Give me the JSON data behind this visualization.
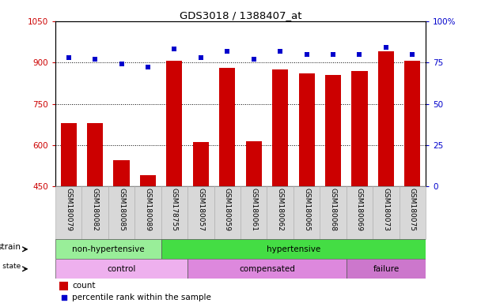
{
  "title": "GDS3018 / 1388407_at",
  "samples": [
    "GSM180079",
    "GSM180082",
    "GSM180085",
    "GSM180089",
    "GSM178755",
    "GSM180057",
    "GSM180059",
    "GSM180061",
    "GSM180062",
    "GSM180065",
    "GSM180068",
    "GSM180069",
    "GSM180073",
    "GSM180075"
  ],
  "counts": [
    680,
    680,
    545,
    490,
    905,
    610,
    880,
    615,
    875,
    860,
    855,
    870,
    940,
    905
  ],
  "percentiles": [
    78,
    77,
    74,
    72,
    83,
    78,
    82,
    77,
    82,
    80,
    80,
    80,
    84,
    80
  ],
  "ylim_left": [
    450,
    1050
  ],
  "ylim_right": [
    0,
    100
  ],
  "yticks_left": [
    450,
    600,
    750,
    900,
    1050
  ],
  "yticks_right": [
    0,
    25,
    50,
    75,
    100
  ],
  "bar_color": "#CC0000",
  "dot_color": "#0000CC",
  "strain_groups": [
    {
      "label": "non-hypertensive",
      "start": 0,
      "end": 4,
      "color": "#99EE99"
    },
    {
      "label": "hypertensive",
      "start": 4,
      "end": 14,
      "color": "#44DD44"
    }
  ],
  "disease_groups": [
    {
      "label": "control",
      "start": 0,
      "end": 5,
      "color": "#EEB0EE"
    },
    {
      "label": "compensated",
      "start": 5,
      "end": 11,
      "color": "#DD88DD"
    },
    {
      "label": "failure",
      "start": 11,
      "end": 14,
      "color": "#CC77CC"
    }
  ],
  "legend_count_label": "count",
  "legend_percentile_label": "percentile rank within the sample",
  "bar_color_red": "#CC0000",
  "dot_color_blue": "#0000CC",
  "tick_label_bg": "#D8D8D8",
  "dot_size": 18,
  "xlim": [
    -0.5,
    13.5
  ]
}
